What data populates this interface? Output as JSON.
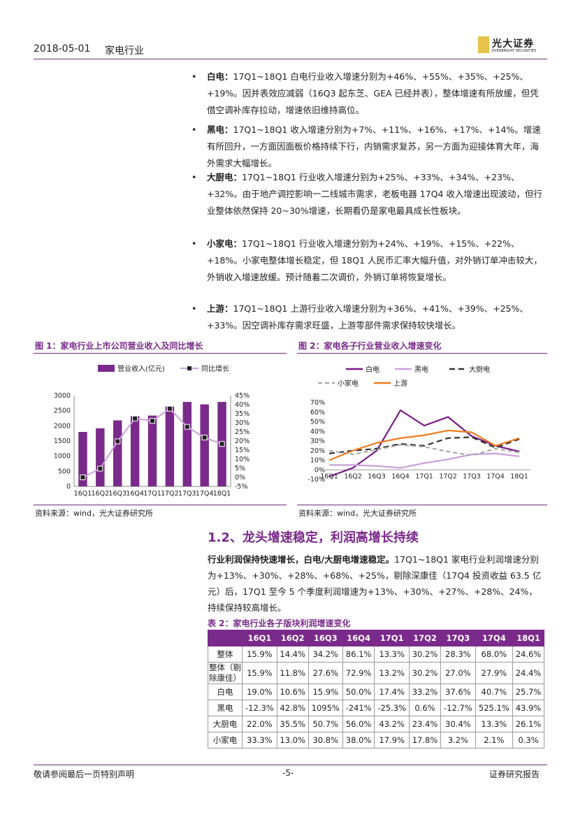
{
  "header": {
    "date": "2018-05-01",
    "industry": "家电行业",
    "logo_cn": "光大证券",
    "logo_en": "EVERBRIGHT SECURITIES"
  },
  "bullets": [
    {
      "term": "白电：",
      "text": "17Q1~18Q1 白电行业收入增速分别为+46%、+55%、+35%、+25%、+19%。因并表效应减弱（16Q3 起东芝、GEA 已经并表），整体增速有所放缓，但凭借空调补库存拉动，增速依旧维持高位。"
    },
    {
      "term": "黑电：",
      "text": "17Q1~18Q1 收入增速分别为+7%、+11%、+16%、+17%、+14%。增速有所回升，一方面因面板价格持续下行，内销需求复苏，另一方面为迎接体育大年，海外需求大幅增长。"
    },
    {
      "term": "大厨电：",
      "text": "17Q1~18Q1 行业收入增速分别为+25%、+33%、+34%、+23%、+32%。由于地产调控影响一二线城市需求，老板电器 17Q4 收入增速出现波动，但行业整体依然保持 20~30%增速，长期看仍是家电最具成长性板块。"
    },
    {
      "term": "小家电：",
      "text": "17Q1~18Q1 行业收入增速分别为+24%、+19%、+15%、+22%、+18%。小家电整体增长稳定，但 18Q1 人民币汇率大幅升值，对外销订单冲击较大，外销收入增速放缓。预计随着二次调价，外销订单将恢复增长。"
    },
    {
      "term": "上游：",
      "text": "17Q1~18Q1 上游行业收入增速分别为+36%、+41%、+39%、+25%、+33%。因空调补库存需求旺盛，上游零部件需求保持较快增长。"
    }
  ],
  "figures": {
    "fig1_title": "图 1：家电行业上市公司营业收入及同比增长",
    "fig2_title": "图 2：家电各子行业营业收入增速变化",
    "source": "资料来源：wind，光大证券研究所"
  },
  "chart_data": [
    {
      "type": "bar",
      "title": "图 1：家电行业上市公司营业收入及同比增长",
      "categories": [
        "16Q1",
        "16Q2",
        "16Q3",
        "16Q4",
        "17Q1",
        "17Q2",
        "17Q3",
        "17Q4",
        "18Q1"
      ],
      "series": [
        {
          "name": "营业收入(亿元)",
          "type": "bar",
          "axis": "left",
          "color": "#7a2a8a",
          "values": [
            1800,
            1920,
            2180,
            2320,
            2340,
            2640,
            2790,
            2710,
            2790
          ]
        },
        {
          "name": "同比增长",
          "type": "line",
          "axis": "right",
          "color": "#c9a0dc",
          "values": [
            0.0,
            4.8,
            19.8,
            32.4,
            31.1,
            37.8,
            27.8,
            21.9,
            18.4
          ]
        }
      ],
      "ylim_left": [
        0,
        3000
      ],
      "yticks_left": [
        "0",
        "500",
        "1000",
        "1500",
        "2000",
        "2500",
        "3000"
      ],
      "ylim_right": [
        -5,
        45
      ],
      "yticks_right": [
        "-5%",
        "0%",
        "5%",
        "10%",
        "15%",
        "20%",
        "25%",
        "30%",
        "35%",
        "40%",
        "45%"
      ]
    },
    {
      "type": "line",
      "title": "图 2：家电各子行业营业收入增速变化",
      "categories": [
        "16Q1",
        "16Q2",
        "16Q3",
        "16Q4",
        "17Q1",
        "17Q2",
        "17Q3",
        "17Q4",
        "18Q1"
      ],
      "series": [
        {
          "name": "白电",
          "color": "#7a1a86",
          "dash": "",
          "values": [
            -7,
            2,
            20,
            62,
            46,
            55,
            35,
            25,
            19
          ]
        },
        {
          "name": "黑电",
          "color": "#c9a0dc",
          "dash": "",
          "values": [
            5,
            5,
            4,
            2,
            7,
            11,
            16,
            17,
            14
          ]
        },
        {
          "name": "大厨电",
          "color": "#333333",
          "dash": "8,5",
          "values": [
            17,
            20,
            22,
            27,
            25,
            33,
            34,
            23,
            32
          ]
        },
        {
          "name": "小家电",
          "color": "#aaaaaa",
          "dash": "6,4",
          "values": [
            20,
            16,
            21,
            26,
            24,
            19,
            15,
            22,
            18
          ]
        },
        {
          "name": "上游",
          "color": "#f07b1f",
          "dash": "",
          "values": [
            10,
            20,
            28,
            33,
            36,
            41,
            39,
            25,
            33
          ]
        }
      ],
      "ylim": [
        -10,
        70
      ],
      "yticks": [
        "-10%",
        "0%",
        "10%",
        "20%",
        "30%",
        "40%",
        "50%",
        "60%",
        "70%"
      ]
    }
  ],
  "section": {
    "title": "1.2、龙头增速稳定，利润高增长持续",
    "para_bold": "行业利润保持快速增长，白电/大厨电增速稳定。",
    "para_text": "17Q1~18Q1 家电行业利润增速分别为+13%、+30%、+28%、+68%、+25%，剔除深康佳（17Q4 投资收益 63.5 亿元）后，17Q1 至今 5 个季度利润增速为+13%、+30%、+27%、+28%、24%，持续保持较高增长。"
  },
  "table": {
    "title": "表 2：家电行业各子版块利润增速变化",
    "headers": [
      "",
      "16Q1",
      "16Q2",
      "16Q3",
      "16Q4",
      "17Q1",
      "17Q2",
      "17Q3",
      "17Q4",
      "18Q1"
    ],
    "rows": [
      [
        "整体",
        "15.9%",
        "14.4%",
        "34.2%",
        "86.1%",
        "13.3%",
        "30.2%",
        "28.3%",
        "68.0%",
        "24.6%"
      ],
      [
        "整体（剔除康佳）",
        "15.9%",
        "11.8%",
        "27.6%",
        "72.9%",
        "13.2%",
        "30.2%",
        "27.0%",
        "27.9%",
        "24.4%"
      ],
      [
        "白电",
        "19.0%",
        "10.6%",
        "15.9%",
        "50.0%",
        "17.4%",
        "33.2%",
        "37.6%",
        "40.7%",
        "25.7%"
      ],
      [
        "黑电",
        "-12.3%",
        "42.8%",
        "1095%",
        "-241%",
        "-25.3%",
        "0.6%",
        "-12.7%",
        "525.1%",
        "43.9%"
      ],
      [
        "大厨电",
        "22.0%",
        "35.5%",
        "50.7%",
        "56.0%",
        "43.2%",
        "23.4%",
        "30.4%",
        "13.3%",
        "26.1%"
      ],
      [
        "小家电",
        "33.3%",
        "13.0%",
        "30.8%",
        "38.0%",
        "17.9%",
        "17.8%",
        "3.2%",
        "2.1%",
        "0.3%"
      ]
    ]
  },
  "footer": {
    "left": "敬请参阅最后一页特别声明",
    "center": "-5-",
    "right": "证券研究报告"
  }
}
